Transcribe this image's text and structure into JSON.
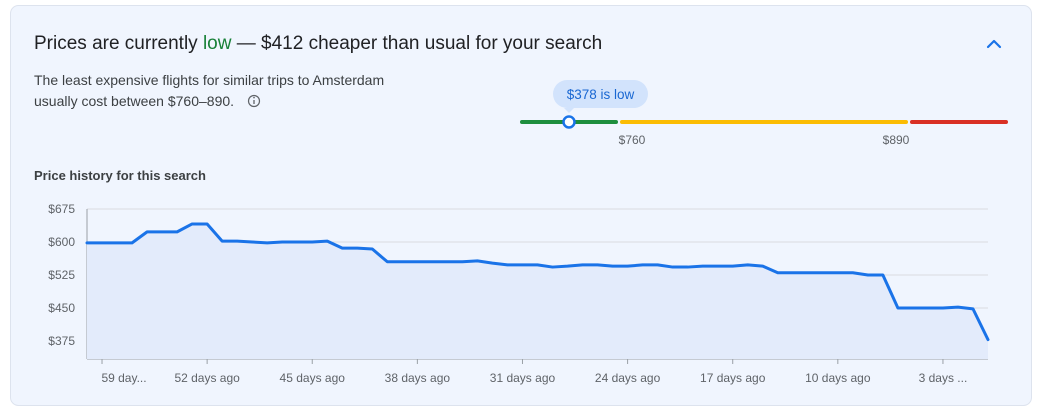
{
  "header": {
    "title": {
      "prefix": "Prices are currently",
      "status": "low",
      "suffix": "— $412 cheaper than usual for your search"
    }
  },
  "summary": {
    "lines": [
      "The least expensive flights for similar trips to Amsterdam",
      "usually cost between $760–890."
    ]
  },
  "price_range": {
    "current_label": "$378 is low",
    "low_bound_label": "$760",
    "high_bound_label": "$890"
  },
  "chart_data": {
    "type": "line",
    "title": "Price history for this search",
    "x": [
      60,
      59,
      58,
      57,
      56,
      55,
      54,
      53,
      52,
      51,
      50,
      49,
      48,
      47,
      46,
      45,
      44,
      43,
      42,
      41,
      40,
      39,
      38,
      37,
      36,
      35,
      34,
      33,
      32,
      31,
      30,
      29,
      28,
      27,
      26,
      25,
      24,
      23,
      22,
      21,
      20,
      19,
      18,
      17,
      16,
      15,
      14,
      13,
      12,
      11,
      10,
      9,
      8,
      7,
      6,
      5,
      4,
      3,
      2,
      1,
      0
    ],
    "series": [
      {
        "color": "#1a73e8",
        "values": [
          598,
          598,
          598,
          598,
          623,
          623,
          623,
          641,
          641,
          602,
          602,
          600,
          598,
          600,
          600,
          600,
          602,
          586,
          586,
          584,
          555,
          555,
          555,
          555,
          555,
          555,
          557,
          552,
          548,
          548,
          548,
          543,
          545,
          548,
          548,
          545,
          545,
          548,
          548,
          543,
          543,
          545,
          545,
          545,
          548,
          545,
          530,
          530,
          530,
          530,
          530,
          530,
          525,
          525,
          450,
          450,
          450,
          450,
          452,
          448,
          378
        ]
      }
    ],
    "xlim": [
      60,
      0
    ],
    "xticks": [
      {
        "value": 59,
        "label": "59 day..."
      },
      {
        "value": 52,
        "label": "52 days ago"
      },
      {
        "value": 45,
        "label": "45 days ago"
      },
      {
        "value": 38,
        "label": "38 days ago"
      },
      {
        "value": 31,
        "label": "31 days ago"
      },
      {
        "value": 24,
        "label": "24 days ago"
      },
      {
        "value": 17,
        "label": "17 days ago"
      },
      {
        "value": 10,
        "label": "10 days ago"
      },
      {
        "value": 3,
        "label": "3 days ..."
      }
    ],
    "ylim": [
      334,
      675
    ],
    "yticks": [
      {
        "value": 675,
        "label": "$675"
      },
      {
        "value": 600,
        "label": "$600"
      },
      {
        "value": 525,
        "label": "$525"
      },
      {
        "value": 450,
        "label": "$450"
      },
      {
        "value": 375,
        "label": "$375"
      }
    ],
    "grid": true,
    "area_color": "#e3ebfb"
  }
}
